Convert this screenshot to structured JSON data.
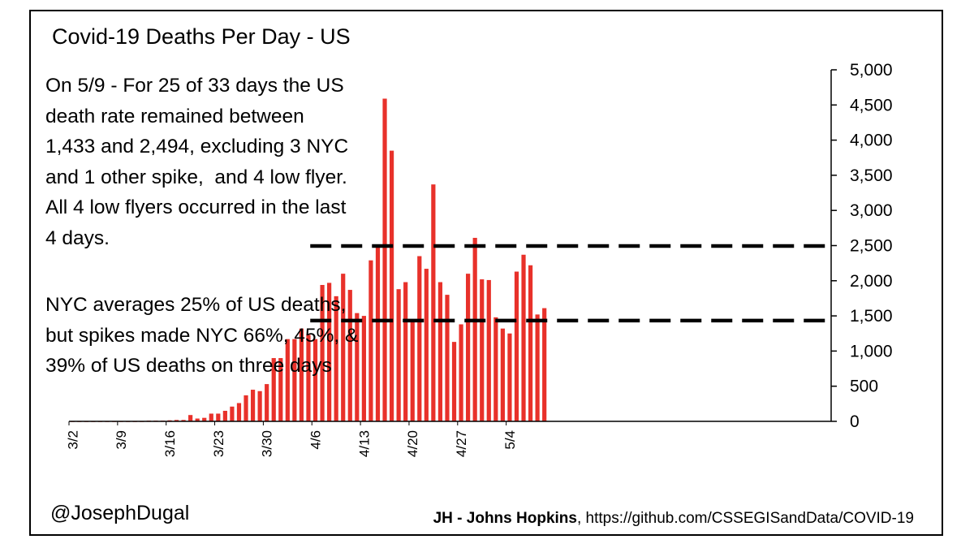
{
  "chart_data": {
    "type": "bar",
    "title": "Covid-19 Deaths Per Day - US",
    "xlabel": "",
    "ylabel": "",
    "ylim": [
      0,
      5000
    ],
    "y_ticks": [
      0,
      500,
      1000,
      1500,
      2000,
      2500,
      3000,
      3500,
      4000,
      4500,
      5000
    ],
    "y_tick_labels": [
      "0",
      "500",
      "1,000",
      "1,500",
      "2,000",
      "2,500",
      "3,000",
      "3,500",
      "4,000",
      "4,500",
      "5,000"
    ],
    "x_tick_labels": [
      {
        "index": 0,
        "label": "3/2"
      },
      {
        "index": 7,
        "label": "3/9"
      },
      {
        "index": 14,
        "label": "3/16"
      },
      {
        "index": 21,
        "label": "3/23"
      },
      {
        "index": 28,
        "label": "3/30"
      },
      {
        "index": 35,
        "label": "4/6"
      },
      {
        "index": 42,
        "label": "4/13"
      },
      {
        "index": 49,
        "label": "4/20"
      },
      {
        "index": 56,
        "label": "4/27"
      },
      {
        "index": 63,
        "label": "5/4"
      }
    ],
    "series": [
      {
        "name": "Deaths per day",
        "color": "#e8312a",
        "categories": [
          "3/2",
          "3/3",
          "3/4",
          "3/5",
          "3/6",
          "3/7",
          "3/8",
          "3/9",
          "3/10",
          "3/11",
          "3/12",
          "3/13",
          "3/14",
          "3/15",
          "3/16",
          "3/17",
          "3/18",
          "3/19",
          "3/20",
          "3/21",
          "3/22",
          "3/23",
          "3/24",
          "3/25",
          "3/26",
          "3/27",
          "3/28",
          "3/29",
          "3/30",
          "3/31",
          "4/1",
          "4/2",
          "4/3",
          "4/4",
          "4/5",
          "4/6",
          "4/7",
          "4/8",
          "4/9",
          "4/10",
          "4/11",
          "4/12",
          "4/13",
          "4/14",
          "4/15",
          "4/16",
          "4/17",
          "4/18",
          "4/19",
          "4/20",
          "4/21",
          "4/22",
          "4/23",
          "4/24",
          "4/25",
          "4/26",
          "4/27",
          "4/28",
          "4/29",
          "4/30",
          "5/1",
          "5/2",
          "5/3",
          "5/4",
          "5/5",
          "5/6",
          "5/7",
          "5/8",
          "5/9"
        ],
        "values": [
          5,
          5,
          5,
          5,
          5,
          5,
          5,
          5,
          5,
          5,
          5,
          10,
          10,
          10,
          15,
          20,
          20,
          90,
          40,
          50,
          110,
          110,
          150,
          210,
          260,
          370,
          450,
          430,
          530,
          900,
          900,
          1170,
          1170,
          1320,
          1230,
          1170,
          1940,
          1970,
          1780,
          2100,
          1870,
          1540,
          1500,
          2290,
          2500,
          4590,
          3850,
          1880,
          1980,
          1420,
          2350,
          2170,
          3370,
          1980,
          1800,
          1130,
          1380,
          2100,
          2610,
          2020,
          2010,
          1480,
          1320,
          1250,
          2130,
          2370,
          2220,
          1520,
          1610
        ]
      }
    ],
    "reference_lines": [
      {
        "value": 2494,
        "start_index": 35,
        "style": "dashed"
      },
      {
        "value": 1433,
        "start_index": 35,
        "style": "dashed"
      }
    ]
  },
  "annotations": {
    "note_1": "On 5/9 - For 25 of 33 days the US\ndeath rate remained between\n1,433 and 2,494, excluding 3 NYC\nand 1 other spike,  and 4 low flyer.\nAll 4 low flyers occurred in the last\n4 days.",
    "note_2": "NYC averages 25% of US deaths,\nbut spikes made NYC 66%, 45%, &\n39% of US deaths on three days",
    "handle": "@JosephDugal",
    "source_bold": "JH - Johns Hopkins",
    "source_rest": ", https://github.com/CSSEGISandData/COVID-19"
  },
  "colors": {
    "bar": "#e8312a",
    "axis": "#000000",
    "reference_line": "#000000"
  }
}
